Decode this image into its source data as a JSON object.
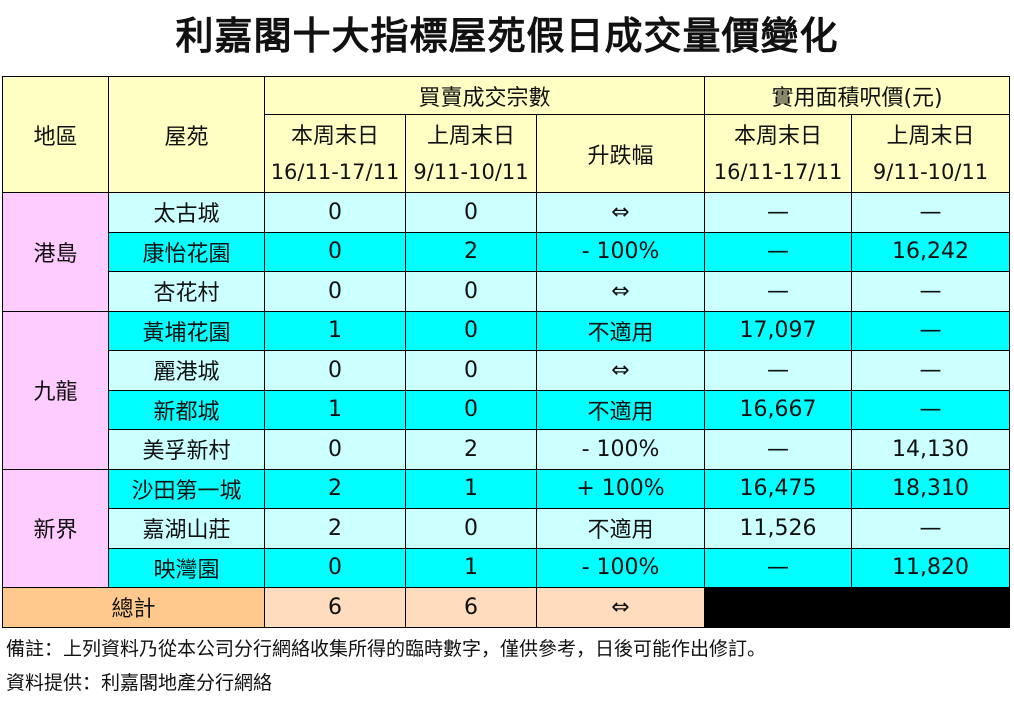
{
  "title": "利嘉閣十大指標屋苑假日成交量價變化",
  "headers": {
    "district": "地區",
    "estate": "屋苑",
    "transactions_group": "買賣成交宗數",
    "price_group": "實用面積呎價(元)",
    "this_weekend": "本周末日",
    "last_weekend": "上周末日",
    "change": "升跌幅",
    "this_dates": "16/11-17/11",
    "last_dates": "9/11-10/11"
  },
  "regions": [
    {
      "name": "港島",
      "rows": [
        {
          "estate": "太古城",
          "this_count": "0",
          "last_count": "0",
          "change": "⇔",
          "this_price": "—",
          "last_price": "—"
        },
        {
          "estate": "康怡花園",
          "this_count": "0",
          "last_count": "2",
          "change": "- 100%",
          "this_price": "—",
          "last_price": "16,242"
        },
        {
          "estate": "杏花村",
          "this_count": "0",
          "last_count": "0",
          "change": "⇔",
          "this_price": "—",
          "last_price": "—"
        }
      ]
    },
    {
      "name": "九龍",
      "rows": [
        {
          "estate": "黃埔花園",
          "this_count": "1",
          "last_count": "0",
          "change": "不適用",
          "this_price": "17,097",
          "last_price": "—"
        },
        {
          "estate": "麗港城",
          "this_count": "0",
          "last_count": "0",
          "change": "⇔",
          "this_price": "—",
          "last_price": "—"
        },
        {
          "estate": "新都城",
          "this_count": "1",
          "last_count": "0",
          "change": "不適用",
          "this_price": "16,667",
          "last_price": "—"
        },
        {
          "estate": "美孚新村",
          "this_count": "0",
          "last_count": "2",
          "change": "- 100%",
          "this_price": "—",
          "last_price": "14,130"
        }
      ]
    },
    {
      "name": "新界",
      "rows": [
        {
          "estate": "沙田第一城",
          "this_count": "2",
          "last_count": "1",
          "change": "+ 100%",
          "this_price": "16,475",
          "last_price": "18,310"
        },
        {
          "estate": "嘉湖山莊",
          "this_count": "2",
          "last_count": "0",
          "change": "不適用",
          "this_price": "11,526",
          "last_price": "—"
        },
        {
          "estate": "映灣園",
          "this_count": "0",
          "last_count": "1",
          "change": "- 100%",
          "this_price": "—",
          "last_price": "11,820"
        }
      ]
    }
  ],
  "total": {
    "label": "總計",
    "this_count": "6",
    "last_count": "6",
    "change": "⇔"
  },
  "notes": {
    "remark": "備註：上列資料乃從本公司分行網絡收集所得的臨時數字，僅供參考，日後可能作出修訂。",
    "source": "資料提供：利嘉閣地產分行網絡"
  },
  "colors": {
    "header_bg": "#ffffc4",
    "region_bg": "#ffccff",
    "row_light": "#ccffff",
    "row_dark": "#00ffff",
    "total_label_bg": "#ffc88c",
    "total_value_bg": "#ffdcbe"
  }
}
